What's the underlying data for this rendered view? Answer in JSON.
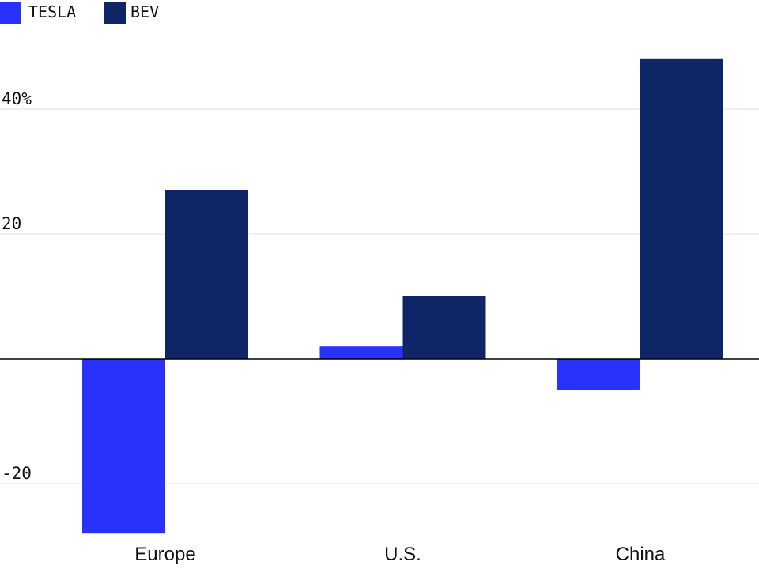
{
  "chart_data": {
    "type": "bar",
    "categories": [
      "Europe",
      "U.S.",
      "China"
    ],
    "series": [
      {
        "name": "TESLA",
        "color": "#2832fa",
        "values": [
          -28,
          2,
          -5
        ]
      },
      {
        "name": "BEV",
        "color": "#0e2666",
        "values": [
          27,
          10,
          48
        ]
      }
    ],
    "y_ticks": [
      {
        "value": 40,
        "label": "40%"
      },
      {
        "value": 20,
        "label": "20"
      },
      {
        "value": -20,
        "label": "-20"
      }
    ],
    "ylim": [
      -29,
      52
    ],
    "grid": true,
    "zero_line": true,
    "legend_position": "top-left",
    "title": "",
    "xlabel": "",
    "ylabel": ""
  }
}
